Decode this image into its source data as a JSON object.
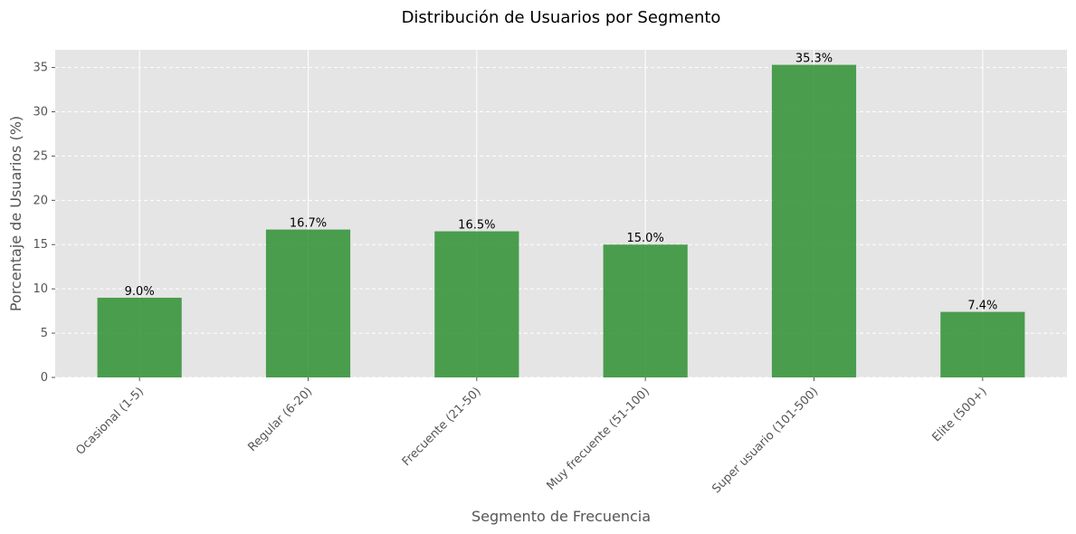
{
  "colors": {
    "background": "#ffffff",
    "plot_background": "#e5e5e5",
    "grid": "#ffffff",
    "bar": "#2e9132",
    "text": "#555555"
  },
  "chart_data": {
    "type": "bar",
    "title": "Distribución de Usuarios por Segmento",
    "xlabel": "Segmento de Frecuencia",
    "ylabel": "Porcentaje de Usuarios (%)",
    "ylim": [
      0,
      37
    ],
    "yticks": [
      0,
      5,
      10,
      15,
      20,
      25,
      30,
      35
    ],
    "categories": [
      "Ocasional (1-5)",
      "Regular (6-20)",
      "Frecuente (21-50)",
      "Muy frecuente (51-100)",
      "Super usuario (101-500)",
      "Elite (500+)"
    ],
    "values": [
      9.0,
      16.7,
      16.5,
      15.0,
      35.3,
      7.4
    ],
    "labels": [
      "9.0%",
      "16.7%",
      "16.5%",
      "15.0%",
      "35.3%",
      "7.4%"
    ],
    "grid": true,
    "legend": "none"
  }
}
